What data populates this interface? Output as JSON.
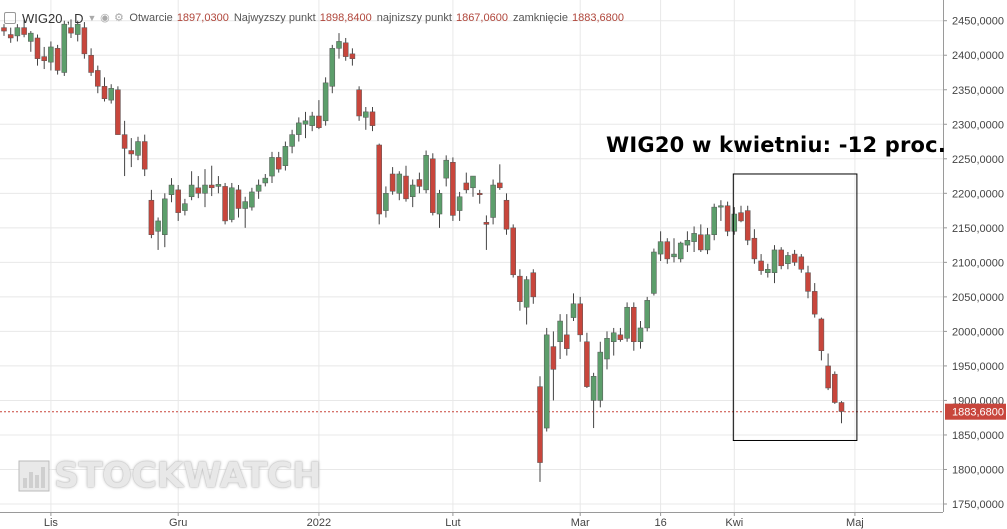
{
  "header": {
    "symbol": "WIG20",
    "timeframe": "D",
    "open_label": "Otwarcie",
    "open_value": "1897,0300",
    "high_label": "Najwyzszy punkt",
    "high_value": "1898,8400",
    "low_label": "najnizszy punkt",
    "low_value": "1867,0600",
    "close_label": "zamknięcie",
    "close_value": "1883,6800"
  },
  "annotation": {
    "text": "WIG20 w kwietniu: -12 proc."
  },
  "watermark": {
    "text": "STOCKWATCH"
  },
  "colors": {
    "up": "#5c9e6b",
    "down": "#c8463c",
    "wick": "#444444",
    "grid": "#e8e8e8",
    "price_line": "#c8463c",
    "price_tag_bg": "#c8463c"
  },
  "chart_data": {
    "type": "candlestick",
    "ylim": [
      1750,
      2480
    ],
    "y_ticks": [
      "1750,0000",
      "1800,0000",
      "1850,0000",
      "1900,0000",
      "1950,0000",
      "2000,0000",
      "2050,0000",
      "2100,0000",
      "2150,0000",
      "2200,0000",
      "2250,0000",
      "2300,0000",
      "2350,0000",
      "2400,0000",
      "2450,0000"
    ],
    "y_tick_values": [
      1750,
      1800,
      1850,
      1900,
      1950,
      2000,
      2050,
      2100,
      2150,
      2200,
      2250,
      2300,
      2350,
      2400,
      2450
    ],
    "x_labels": [
      "Lis",
      "Gru",
      "2022",
      "Lut",
      "Mar",
      "16",
      "Kwi",
      "Maj"
    ],
    "x_label_index": [
      7,
      26,
      47,
      67,
      86,
      98,
      109,
      127
    ],
    "last_price": 1883.68,
    "last_price_label": "1883,6800",
    "highlight_box": {
      "from_index": 109,
      "to_index": 127,
      "low": 1842,
      "high": 2228
    },
    "candles": [
      {
        "o": 2440,
        "h": 2445,
        "l": 2428,
        "c": 2435
      },
      {
        "o": 2430,
        "h": 2440,
        "l": 2418,
        "c": 2425
      },
      {
        "o": 2428,
        "h": 2445,
        "l": 2420,
        "c": 2440
      },
      {
        "o": 2440,
        "h": 2452,
        "l": 2426,
        "c": 2430
      },
      {
        "o": 2420,
        "h": 2435,
        "l": 2405,
        "c": 2432
      },
      {
        "o": 2425,
        "h": 2430,
        "l": 2385,
        "c": 2395
      },
      {
        "o": 2398,
        "h": 2412,
        "l": 2380,
        "c": 2392
      },
      {
        "o": 2390,
        "h": 2420,
        "l": 2378,
        "c": 2412
      },
      {
        "o": 2410,
        "h": 2415,
        "l": 2372,
        "c": 2378
      },
      {
        "o": 2375,
        "h": 2450,
        "l": 2370,
        "c": 2445
      },
      {
        "o": 2440,
        "h": 2452,
        "l": 2425,
        "c": 2432
      },
      {
        "o": 2430,
        "h": 2450,
        "l": 2420,
        "c": 2445
      },
      {
        "o": 2440,
        "h": 2448,
        "l": 2395,
        "c": 2402
      },
      {
        "o": 2400,
        "h": 2410,
        "l": 2370,
        "c": 2375
      },
      {
        "o": 2378,
        "h": 2385,
        "l": 2345,
        "c": 2355
      },
      {
        "o": 2355,
        "h": 2368,
        "l": 2333,
        "c": 2337
      },
      {
        "o": 2335,
        "h": 2358,
        "l": 2330,
        "c": 2352
      },
      {
        "o": 2350,
        "h": 2355,
        "l": 2285,
        "c": 2285
      },
      {
        "o": 2285,
        "h": 2305,
        "l": 2225,
        "c": 2265
      },
      {
        "o": 2262,
        "h": 2280,
        "l": 2238,
        "c": 2257
      },
      {
        "o": 2255,
        "h": 2282,
        "l": 2248,
        "c": 2275
      },
      {
        "o": 2275,
        "h": 2285,
        "l": 2225,
        "c": 2235
      },
      {
        "o": 2190,
        "h": 2205,
        "l": 2135,
        "c": 2140
      },
      {
        "o": 2145,
        "h": 2165,
        "l": 2118,
        "c": 2160
      },
      {
        "o": 2140,
        "h": 2200,
        "l": 2122,
        "c": 2192
      },
      {
        "o": 2198,
        "h": 2222,
        "l": 2187,
        "c": 2212
      },
      {
        "o": 2205,
        "h": 2212,
        "l": 2160,
        "c": 2172
      },
      {
        "o": 2175,
        "h": 2192,
        "l": 2168,
        "c": 2185
      },
      {
        "o": 2195,
        "h": 2232,
        "l": 2190,
        "c": 2212
      },
      {
        "o": 2208,
        "h": 2225,
        "l": 2193,
        "c": 2200
      },
      {
        "o": 2200,
        "h": 2235,
        "l": 2180,
        "c": 2212
      },
      {
        "o": 2212,
        "h": 2240,
        "l": 2196,
        "c": 2208
      },
      {
        "o": 2210,
        "h": 2225,
        "l": 2200,
        "c": 2213
      },
      {
        "o": 2210,
        "h": 2215,
        "l": 2155,
        "c": 2160
      },
      {
        "o": 2162,
        "h": 2215,
        "l": 2158,
        "c": 2208
      },
      {
        "o": 2205,
        "h": 2212,
        "l": 2165,
        "c": 2178
      },
      {
        "o": 2178,
        "h": 2195,
        "l": 2150,
        "c": 2188
      },
      {
        "o": 2180,
        "h": 2208,
        "l": 2175,
        "c": 2202
      },
      {
        "o": 2203,
        "h": 2220,
        "l": 2192,
        "c": 2212
      },
      {
        "o": 2215,
        "h": 2228,
        "l": 2210,
        "c": 2222
      },
      {
        "o": 2225,
        "h": 2260,
        "l": 2215,
        "c": 2252
      },
      {
        "o": 2252,
        "h": 2260,
        "l": 2230,
        "c": 2235
      },
      {
        "o": 2240,
        "h": 2275,
        "l": 2233,
        "c": 2268
      },
      {
        "o": 2268,
        "h": 2292,
        "l": 2258,
        "c": 2285
      },
      {
        "o": 2285,
        "h": 2310,
        "l": 2275,
        "c": 2302
      },
      {
        "o": 2300,
        "h": 2318,
        "l": 2280,
        "c": 2305
      },
      {
        "o": 2298,
        "h": 2318,
        "l": 2290,
        "c": 2312
      },
      {
        "o": 2312,
        "h": 2335,
        "l": 2293,
        "c": 2295
      },
      {
        "o": 2305,
        "h": 2368,
        "l": 2298,
        "c": 2360
      },
      {
        "o": 2355,
        "h": 2415,
        "l": 2345,
        "c": 2410
      },
      {
        "o": 2410,
        "h": 2432,
        "l": 2395,
        "c": 2420
      },
      {
        "o": 2418,
        "h": 2425,
        "l": 2392,
        "c": 2398
      },
      {
        "o": 2402,
        "h": 2410,
        "l": 2385,
        "c": 2395
      },
      {
        "o": 2350,
        "h": 2355,
        "l": 2305,
        "c": 2312
      },
      {
        "o": 2310,
        "h": 2325,
        "l": 2292,
        "c": 2318
      },
      {
        "o": 2318,
        "h": 2325,
        "l": 2290,
        "c": 2298
      },
      {
        "o": 2270,
        "h": 2272,
        "l": 2155,
        "c": 2170
      },
      {
        "o": 2175,
        "h": 2210,
        "l": 2165,
        "c": 2200
      },
      {
        "o": 2228,
        "h": 2238,
        "l": 2198,
        "c": 2203
      },
      {
        "o": 2200,
        "h": 2232,
        "l": 2190,
        "c": 2228
      },
      {
        "o": 2225,
        "h": 2240,
        "l": 2188,
        "c": 2192
      },
      {
        "o": 2195,
        "h": 2220,
        "l": 2180,
        "c": 2212
      },
      {
        "o": 2220,
        "h": 2230,
        "l": 2200,
        "c": 2210
      },
      {
        "o": 2205,
        "h": 2262,
        "l": 2200,
        "c": 2255
      },
      {
        "o": 2250,
        "h": 2258,
        "l": 2168,
        "c": 2172
      },
      {
        "o": 2170,
        "h": 2205,
        "l": 2150,
        "c": 2200
      },
      {
        "o": 2222,
        "h": 2255,
        "l": 2210,
        "c": 2248
      },
      {
        "o": 2245,
        "h": 2252,
        "l": 2160,
        "c": 2168
      },
      {
        "o": 2175,
        "h": 2202,
        "l": 2160,
        "c": 2195
      },
      {
        "o": 2215,
        "h": 2230,
        "l": 2200,
        "c": 2205
      },
      {
        "o": 2208,
        "h": 2225,
        "l": 2195,
        "c": 2225
      },
      {
        "o": 2200,
        "h": 2205,
        "l": 2185,
        "c": 2198
      },
      {
        "o": 2158,
        "h": 2168,
        "l": 2118,
        "c": 2155
      },
      {
        "o": 2165,
        "h": 2220,
        "l": 2155,
        "c": 2212
      },
      {
        "o": 2215,
        "h": 2242,
        "l": 2205,
        "c": 2208
      },
      {
        "o": 2190,
        "h": 2200,
        "l": 2140,
        "c": 2148
      },
      {
        "o": 2150,
        "h": 2155,
        "l": 2078,
        "c": 2082
      },
      {
        "o": 2080,
        "h": 2090,
        "l": 2030,
        "c": 2043
      },
      {
        "o": 2035,
        "h": 2080,
        "l": 2010,
        "c": 2075
      },
      {
        "o": 2085,
        "h": 2090,
        "l": 2040,
        "c": 2050
      },
      {
        "o": 1920,
        "h": 1935,
        "l": 1782,
        "c": 1810
      },
      {
        "o": 1860,
        "h": 2005,
        "l": 1855,
        "c": 1995
      },
      {
        "o": 1978,
        "h": 2000,
        "l": 1900,
        "c": 1945
      },
      {
        "o": 1985,
        "h": 2025,
        "l": 1960,
        "c": 2015
      },
      {
        "o": 1995,
        "h": 2025,
        "l": 1965,
        "c": 1975
      },
      {
        "o": 2020,
        "h": 2055,
        "l": 2015,
        "c": 2040
      },
      {
        "o": 2040,
        "h": 2050,
        "l": 1985,
        "c": 1995
      },
      {
        "o": 1985,
        "h": 1998,
        "l": 1918,
        "c": 1920
      },
      {
        "o": 1900,
        "h": 1940,
        "l": 1860,
        "c": 1935
      },
      {
        "o": 1900,
        "h": 1985,
        "l": 1890,
        "c": 1970
      },
      {
        "o": 1960,
        "h": 2000,
        "l": 1945,
        "c": 1990
      },
      {
        "o": 1985,
        "h": 2005,
        "l": 1965,
        "c": 1998
      },
      {
        "o": 1995,
        "h": 2005,
        "l": 1985,
        "c": 1988
      },
      {
        "o": 1990,
        "h": 2042,
        "l": 1985,
        "c": 2035
      },
      {
        "o": 2035,
        "h": 2042,
        "l": 1972,
        "c": 1985
      },
      {
        "o": 1985,
        "h": 2015,
        "l": 1975,
        "c": 2005
      },
      {
        "o": 2005,
        "h": 2050,
        "l": 2000,
        "c": 2045
      },
      {
        "o": 2055,
        "h": 2120,
        "l": 2052,
        "c": 2115
      },
      {
        "o": 2112,
        "h": 2145,
        "l": 2102,
        "c": 2130
      },
      {
        "o": 2130,
        "h": 2135,
        "l": 2098,
        "c": 2105
      },
      {
        "o": 2108,
        "h": 2135,
        "l": 2100,
        "c": 2112
      },
      {
        "o": 2105,
        "h": 2130,
        "l": 2100,
        "c": 2128
      },
      {
        "o": 2125,
        "h": 2145,
        "l": 2115,
        "c": 2132
      },
      {
        "o": 2130,
        "h": 2152,
        "l": 2115,
        "c": 2142
      },
      {
        "o": 2140,
        "h": 2155,
        "l": 2115,
        "c": 2118
      },
      {
        "o": 2118,
        "h": 2150,
        "l": 2112,
        "c": 2140
      },
      {
        "o": 2140,
        "h": 2185,
        "l": 2132,
        "c": 2180
      },
      {
        "o": 2180,
        "h": 2190,
        "l": 2160,
        "c": 2182
      },
      {
        "o": 2182,
        "h": 2188,
        "l": 2138,
        "c": 2145
      },
      {
        "o": 2145,
        "h": 2180,
        "l": 2140,
        "c": 2170
      },
      {
        "o": 2172,
        "h": 2182,
        "l": 2158,
        "c": 2160
      },
      {
        "o": 2175,
        "h": 2182,
        "l": 2125,
        "c": 2132
      },
      {
        "o": 2135,
        "h": 2148,
        "l": 2098,
        "c": 2105
      },
      {
        "o": 2102,
        "h": 2112,
        "l": 2082,
        "c": 2088
      },
      {
        "o": 2085,
        "h": 2098,
        "l": 2078,
        "c": 2090
      },
      {
        "o": 2085,
        "h": 2125,
        "l": 2070,
        "c": 2118
      },
      {
        "o": 2118,
        "h": 2122,
        "l": 2090,
        "c": 2095
      },
      {
        "o": 2098,
        "h": 2115,
        "l": 2090,
        "c": 2110
      },
      {
        "o": 2112,
        "h": 2118,
        "l": 2095,
        "c": 2100
      },
      {
        "o": 2108,
        "h": 2112,
        "l": 2085,
        "c": 2090
      },
      {
        "o": 2085,
        "h": 2095,
        "l": 2048,
        "c": 2058
      },
      {
        "o": 2058,
        "h": 2070,
        "l": 2020,
        "c": 2025
      },
      {
        "o": 2018,
        "h": 2020,
        "l": 1958,
        "c": 1972
      },
      {
        "o": 1950,
        "h": 1968,
        "l": 1915,
        "c": 1918
      },
      {
        "o": 1938,
        "h": 1942,
        "l": 1895,
        "c": 1897
      },
      {
        "o": 1897,
        "h": 1899,
        "l": 1867,
        "c": 1884
      }
    ]
  }
}
